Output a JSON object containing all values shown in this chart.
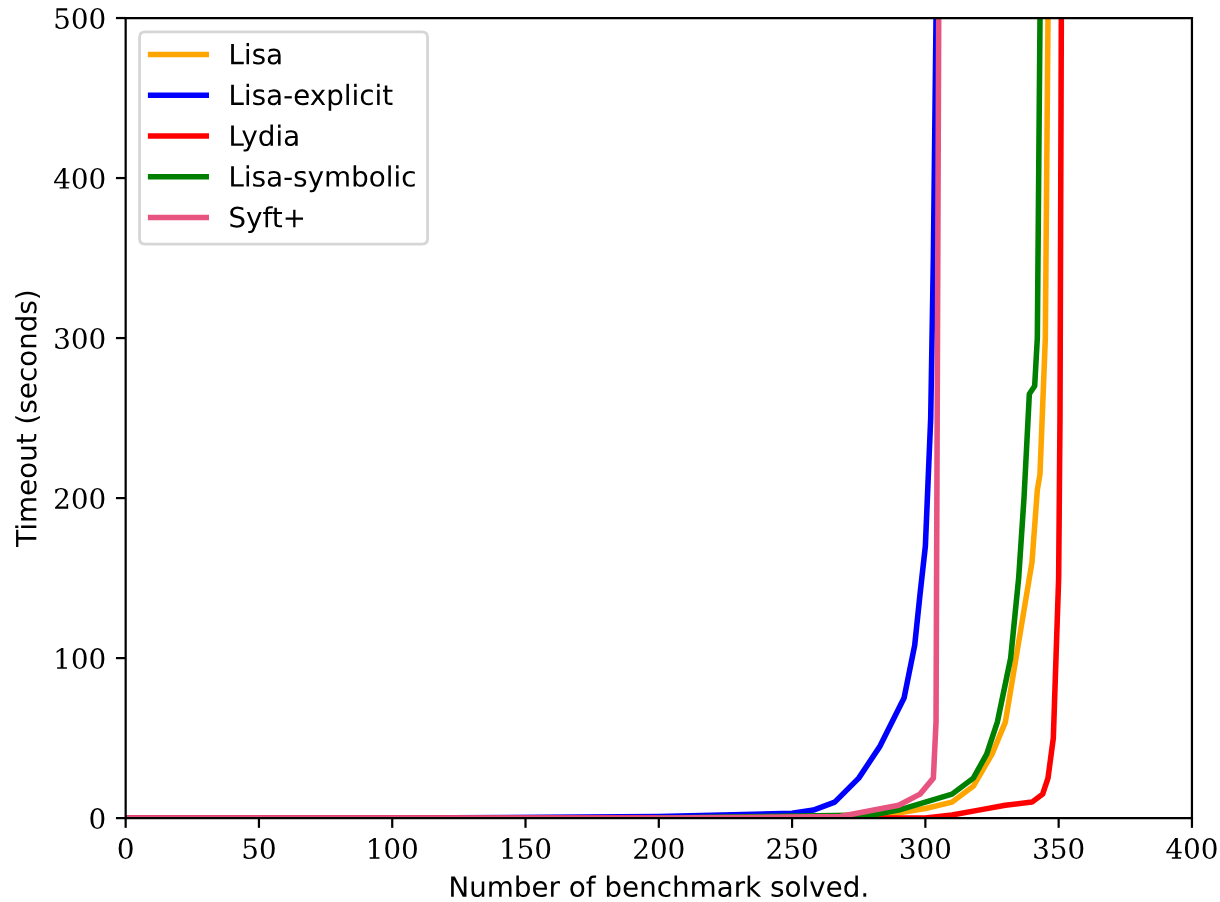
{
  "chart_data": {
    "type": "line",
    "xlabel": "Number of benchmark solved.",
    "ylabel": "Timeout (seconds)",
    "xlim": [
      0,
      400
    ],
    "ylim": [
      0,
      500
    ],
    "xticks": [
      0,
      50,
      100,
      150,
      200,
      250,
      300,
      350,
      400
    ],
    "yticks": [
      0,
      100,
      200,
      300,
      400,
      500
    ],
    "grid": false,
    "legend": "top left",
    "marker": "none",
    "line_style": "solid",
    "series": [
      {
        "name": "Lisa",
        "color": "#ffa500",
        "x": [
          200,
          285,
          300,
          310,
          318,
          325,
          330,
          334,
          337,
          340,
          342,
          343,
          345,
          346
        ],
        "values": [
          0,
          2,
          6,
          10,
          20,
          40,
          60,
          100,
          130,
          160,
          205,
          215,
          300,
          500
        ]
      },
      {
        "name": "Lisa-explicit",
        "color": "#0000ff",
        "x": [
          0,
          100,
          200,
          250,
          258,
          266,
          275,
          283,
          292,
          296,
          298,
          300,
          302,
          303,
          304
        ],
        "values": [
          0,
          0,
          1,
          3,
          5,
          10,
          25,
          45,
          75,
          108,
          140,
          170,
          250,
          350,
          500
        ]
      },
      {
        "name": "Lydia",
        "color": "#ff0000",
        "x": [
          0,
          100,
          200,
          300,
          310,
          320,
          330,
          340,
          344,
          346,
          348,
          349,
          350,
          350.5,
          351
        ],
        "values": [
          0,
          0,
          0,
          0,
          2,
          5,
          8,
          10,
          15,
          25,
          50,
          100,
          150,
          250,
          500
        ]
      },
      {
        "name": "Lisa-symbolic",
        "color": "#008000",
        "x": [
          200,
          280,
          290,
          300,
          310,
          318,
          323,
          327,
          332,
          335,
          337,
          339,
          341,
          342,
          343
        ],
        "values": [
          0,
          2,
          5,
          10,
          15,
          25,
          40,
          60,
          100,
          150,
          200,
          265,
          270,
          300,
          500
        ]
      },
      {
        "name": "Syft+",
        "color": "#e75480",
        "x": [
          0,
          100,
          200,
          268,
          290,
          298,
          303,
          304,
          305
        ],
        "values": [
          0,
          0,
          0,
          1,
          8,
          15,
          25,
          60,
          500
        ]
      }
    ]
  }
}
